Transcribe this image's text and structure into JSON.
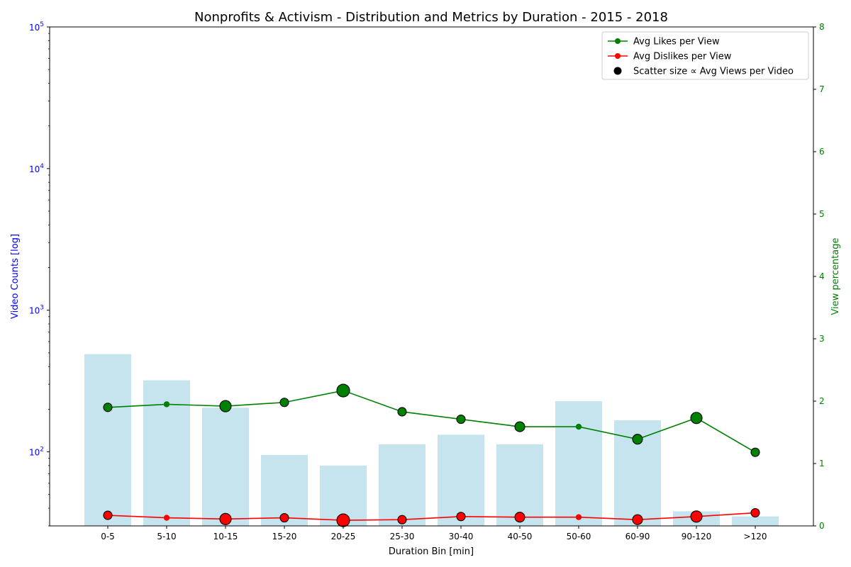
{
  "chart_data": {
    "type": "bar",
    "title": "Nonprofits & Activism - Distribution and Metrics by Duration - 2015 - 2018",
    "xlabel": "Duration Bin [min]",
    "ylabel": "Video Counts [log]",
    "y2label": "View percentage",
    "categories": [
      "0-5",
      "5-10",
      "10-15",
      "15-20",
      "20-25",
      "25-30",
      "30-40",
      "40-50",
      "50-60",
      "60-90",
      "90-120",
      ">120"
    ],
    "y_scale": "log",
    "ylim": [
      30,
      100000
    ],
    "y_ticks": [
      {
        "base": "10",
        "exp": "2",
        "value": 100
      },
      {
        "base": "10",
        "exp": "3",
        "value": 1000
      },
      {
        "base": "10",
        "exp": "4",
        "value": 10000
      },
      {
        "base": "10",
        "exp": "5",
        "value": 100000
      }
    ],
    "y2lim": [
      0,
      8
    ],
    "y2_ticks": [
      "0",
      "1",
      "2",
      "3",
      "4",
      "5",
      "6",
      "7",
      "8"
    ],
    "bars": {
      "name": "Video Counts",
      "values": [
        490,
        320,
        205,
        95,
        80,
        113,
        132,
        113,
        228,
        167,
        38,
        35
      ],
      "color": "#add8e6"
    },
    "series": [
      {
        "name": "Avg Likes per View",
        "values": [
          1.9,
          1.95,
          1.92,
          1.98,
          2.17,
          1.83,
          1.71,
          1.59,
          1.59,
          1.39,
          1.73,
          1.18
        ],
        "color": "#008000",
        "marker_sizes": [
          1,
          0,
          3,
          1,
          4,
          1,
          1,
          2,
          0,
          2,
          3,
          1
        ]
      },
      {
        "name": "Avg Dislikes per View",
        "values": [
          0.17,
          0.13,
          0.11,
          0.13,
          0.09,
          0.1,
          0.15,
          0.14,
          0.14,
          0.1,
          0.15,
          0.21
        ],
        "color": "#ff0000",
        "marker_sizes": [
          1,
          0,
          3,
          1,
          4,
          1,
          1,
          2,
          0,
          2,
          3,
          1
        ]
      }
    ],
    "legend": {
      "placement": "top-right",
      "entries": [
        {
          "label": "Avg Likes per View",
          "kind": "line",
          "color": "#008000"
        },
        {
          "label": "Avg Dislikes per View",
          "kind": "line",
          "color": "#ff0000"
        },
        {
          "label": "Scatter size ∝ Avg Views per Video",
          "kind": "dot",
          "color": "#000000"
        }
      ]
    },
    "grid": false,
    "colors": {
      "left_axis": "#0000ff",
      "right_axis": "#008000",
      "bar": "#add8e6"
    }
  }
}
